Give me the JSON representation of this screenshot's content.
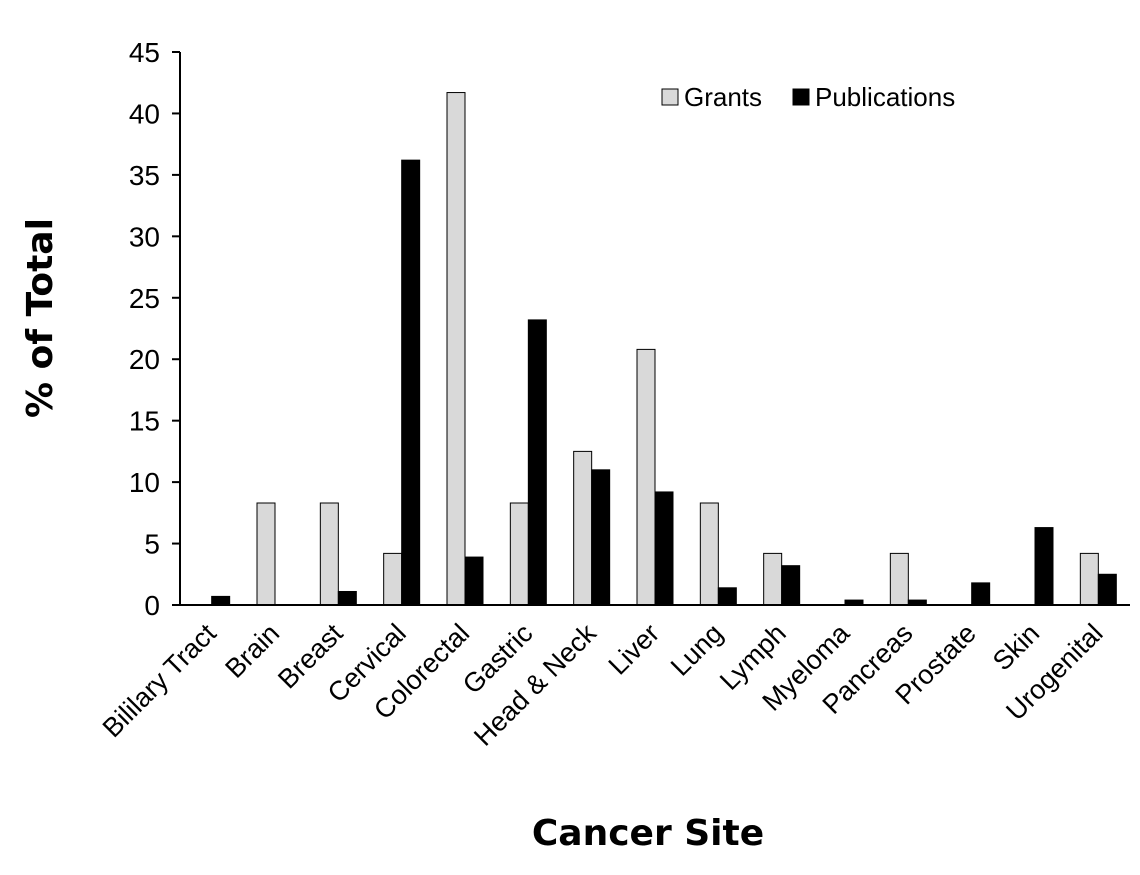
{
  "chart_data": {
    "type": "bar",
    "title": "",
    "xlabel": "Cancer Site",
    "ylabel": "% of Total",
    "ylim": [
      0,
      45
    ],
    "yticks": [
      "0",
      "5",
      "10",
      "15",
      "20",
      "25",
      "30",
      "35",
      "40",
      "45"
    ],
    "grid": false,
    "legend_position": "top-right",
    "categories": [
      "Bililary Tract",
      "Brain",
      "Breast",
      "Cervical",
      "Colorectal",
      "Gastric",
      "Head & Neck",
      "Liver",
      "Lung",
      "Lymph",
      "Myeloma",
      "Pancreas",
      "Prostate",
      "Skin",
      "Urogenital"
    ],
    "series": [
      {
        "name": "Grants",
        "color": "#d9d9d9",
        "values": [
          0,
          8.3,
          8.3,
          4.2,
          41.7,
          8.3,
          12.5,
          20.8,
          8.3,
          4.2,
          0,
          4.2,
          0,
          0,
          4.2
        ]
      },
      {
        "name": "Publications",
        "color": "#000000",
        "values": [
          0.7,
          0,
          1.1,
          36.2,
          3.9,
          23.2,
          11.0,
          9.2,
          1.4,
          3.2,
          0.4,
          0.4,
          1.8,
          6.3,
          2.5
        ]
      }
    ]
  }
}
